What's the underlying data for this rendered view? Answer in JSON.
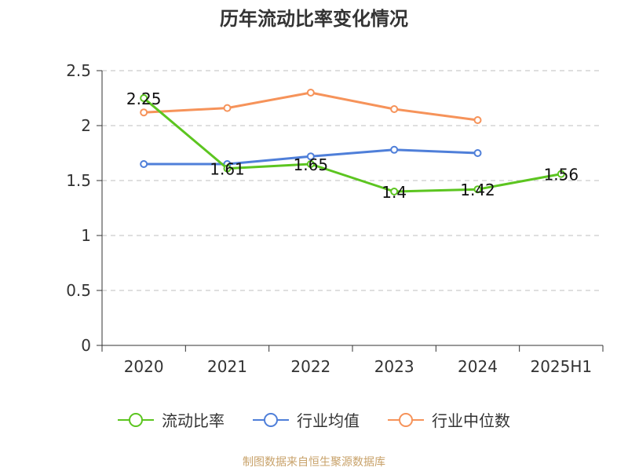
{
  "chart_data": {
    "type": "line",
    "title": "历年流动比率变化情况",
    "categories": [
      "2020",
      "2021",
      "2022",
      "2023",
      "2024",
      "2025H1"
    ],
    "ylim": [
      0,
      2.5
    ],
    "yticks": [
      "0",
      "0.5",
      "1",
      "1.5",
      "2",
      "2.5"
    ],
    "grid": true,
    "legend_position": "bottom",
    "series": [
      {
        "name": "流动比率",
        "color": "#5cc520",
        "values": [
          2.25,
          1.61,
          1.65,
          1.4,
          1.42,
          1.56
        ],
        "labels": [
          "2.25",
          "1.61",
          "1.65",
          "1.4",
          "1.42",
          "1.56"
        ]
      },
      {
        "name": "行业均值",
        "color": "#4f7fd9",
        "values": [
          1.65,
          1.65,
          1.72,
          1.78,
          1.75,
          null
        ]
      },
      {
        "name": "行业中位数",
        "color": "#f6935a",
        "values": [
          2.12,
          2.16,
          2.3,
          2.15,
          2.05,
          null
        ]
      }
    ]
  },
  "source": "制图数据来自恒生聚源数据库"
}
